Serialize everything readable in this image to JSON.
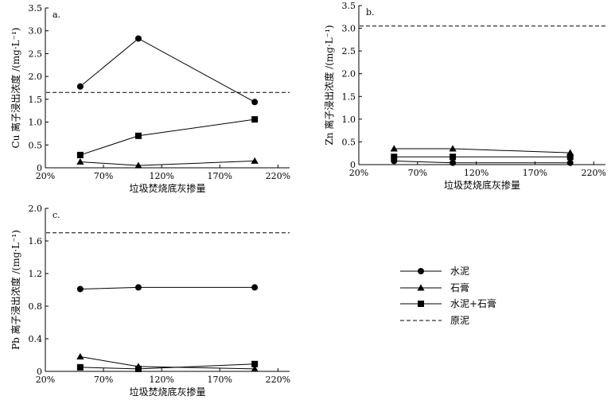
{
  "chart_data": [
    {
      "panel_label": "a.",
      "type": "line",
      "xlabel": "垃圾焚烧底灰掺量",
      "ylabel": "Cu 离子浸出浓度 /(mg·L⁻¹)",
      "xlim": [
        20,
        230
      ],
      "ylim": [
        0,
        3.5
      ],
      "x_ticks": [
        20,
        70,
        120,
        170,
        220
      ],
      "x_tick_labels": [
        "20%",
        "70%",
        "120%",
        "170%",
        "220%"
      ],
      "y_ticks": [
        0,
        0.5,
        1.0,
        1.5,
        2.0,
        2.5,
        3.0,
        3.5
      ],
      "y_tick_labels": [
        "0",
        "0.5",
        "1.0",
        "1.5",
        "2.0",
        "2.5",
        "3.0",
        "3.5"
      ],
      "x": [
        50,
        100,
        200
      ],
      "series": [
        {
          "name": "水泥",
          "marker": "circle",
          "values": [
            1.78,
            2.83,
            1.44
          ]
        },
        {
          "name": "石膏",
          "marker": "triangle",
          "values": [
            0.13,
            0.05,
            0.15
          ]
        },
        {
          "name": "水泥+石膏",
          "marker": "square",
          "values": [
            0.28,
            0.7,
            1.06
          ]
        }
      ],
      "reference": {
        "name": "原泥",
        "value": 1.65
      }
    },
    {
      "panel_label": "b.",
      "type": "line",
      "xlabel": "垃圾焚烧底灰掺量",
      "ylabel": "Zn 离子浸出浓度 /(mg·L⁻¹)",
      "xlim": [
        20,
        230
      ],
      "ylim": [
        0,
        3.5
      ],
      "x_ticks": [
        20,
        70,
        120,
        170,
        220
      ],
      "x_tick_labels": [
        "20%",
        "70%",
        "120%",
        "170%",
        "220%"
      ],
      "y_ticks": [
        0,
        0.5,
        1.0,
        1.5,
        2.0,
        2.5,
        3.0,
        3.5
      ],
      "y_tick_labels": [
        "0",
        "0.5",
        "1.0",
        "1.5",
        "2.0",
        "2.5",
        "3.0",
        "3.5"
      ],
      "x": [
        50,
        100,
        200
      ],
      "series": [
        {
          "name": "水泥",
          "marker": "circle",
          "values": [
            0.08,
            0.04,
            0.04
          ]
        },
        {
          "name": "石膏",
          "marker": "triangle",
          "values": [
            0.35,
            0.35,
            0.26
          ]
        },
        {
          "name": "水泥+石膏",
          "marker": "square",
          "values": [
            0.17,
            0.17,
            0.17
          ]
        }
      ],
      "reference": {
        "name": "原泥",
        "value": 3.05
      }
    },
    {
      "panel_label": "c.",
      "type": "line",
      "xlabel": "垃圾焚烧底灰掺量",
      "ylabel": "Pb 离子浸出浓度 /(mg·L⁻¹)",
      "xlim": [
        20,
        230
      ],
      "ylim": [
        0,
        2.0
      ],
      "x_ticks": [
        20,
        70,
        120,
        170,
        220
      ],
      "x_tick_labels": [
        "20%",
        "70%",
        "120%",
        "170%",
        "220%"
      ],
      "y_ticks": [
        0,
        0.4,
        0.8,
        1.2,
        1.6,
        2.0
      ],
      "y_tick_labels": [
        "0",
        "0.4",
        "0.8",
        "1.2",
        "1.6",
        "2.0"
      ],
      "x": [
        50,
        100,
        200
      ],
      "series": [
        {
          "name": "水泥",
          "marker": "circle",
          "values": [
            1.01,
            1.03,
            1.03
          ]
        },
        {
          "name": "石膏",
          "marker": "triangle",
          "values": [
            0.18,
            0.06,
            0.03
          ]
        },
        {
          "name": "水泥+石膏",
          "marker": "square",
          "values": [
            0.05,
            0.03,
            0.09
          ]
        }
      ],
      "reference": {
        "name": "原泥",
        "value": 1.7
      }
    }
  ],
  "legend": {
    "entries": [
      {
        "label": "水泥",
        "marker": "circle",
        "style": "solid"
      },
      {
        "label": "石膏",
        "marker": "triangle",
        "style": "solid"
      },
      {
        "label": "水泥+石膏",
        "marker": "square",
        "style": "solid"
      },
      {
        "label": "原泥",
        "marker": "none",
        "style": "dashed"
      }
    ]
  },
  "colors": {
    "ink": "#000000",
    "background": "#ffffff"
  }
}
